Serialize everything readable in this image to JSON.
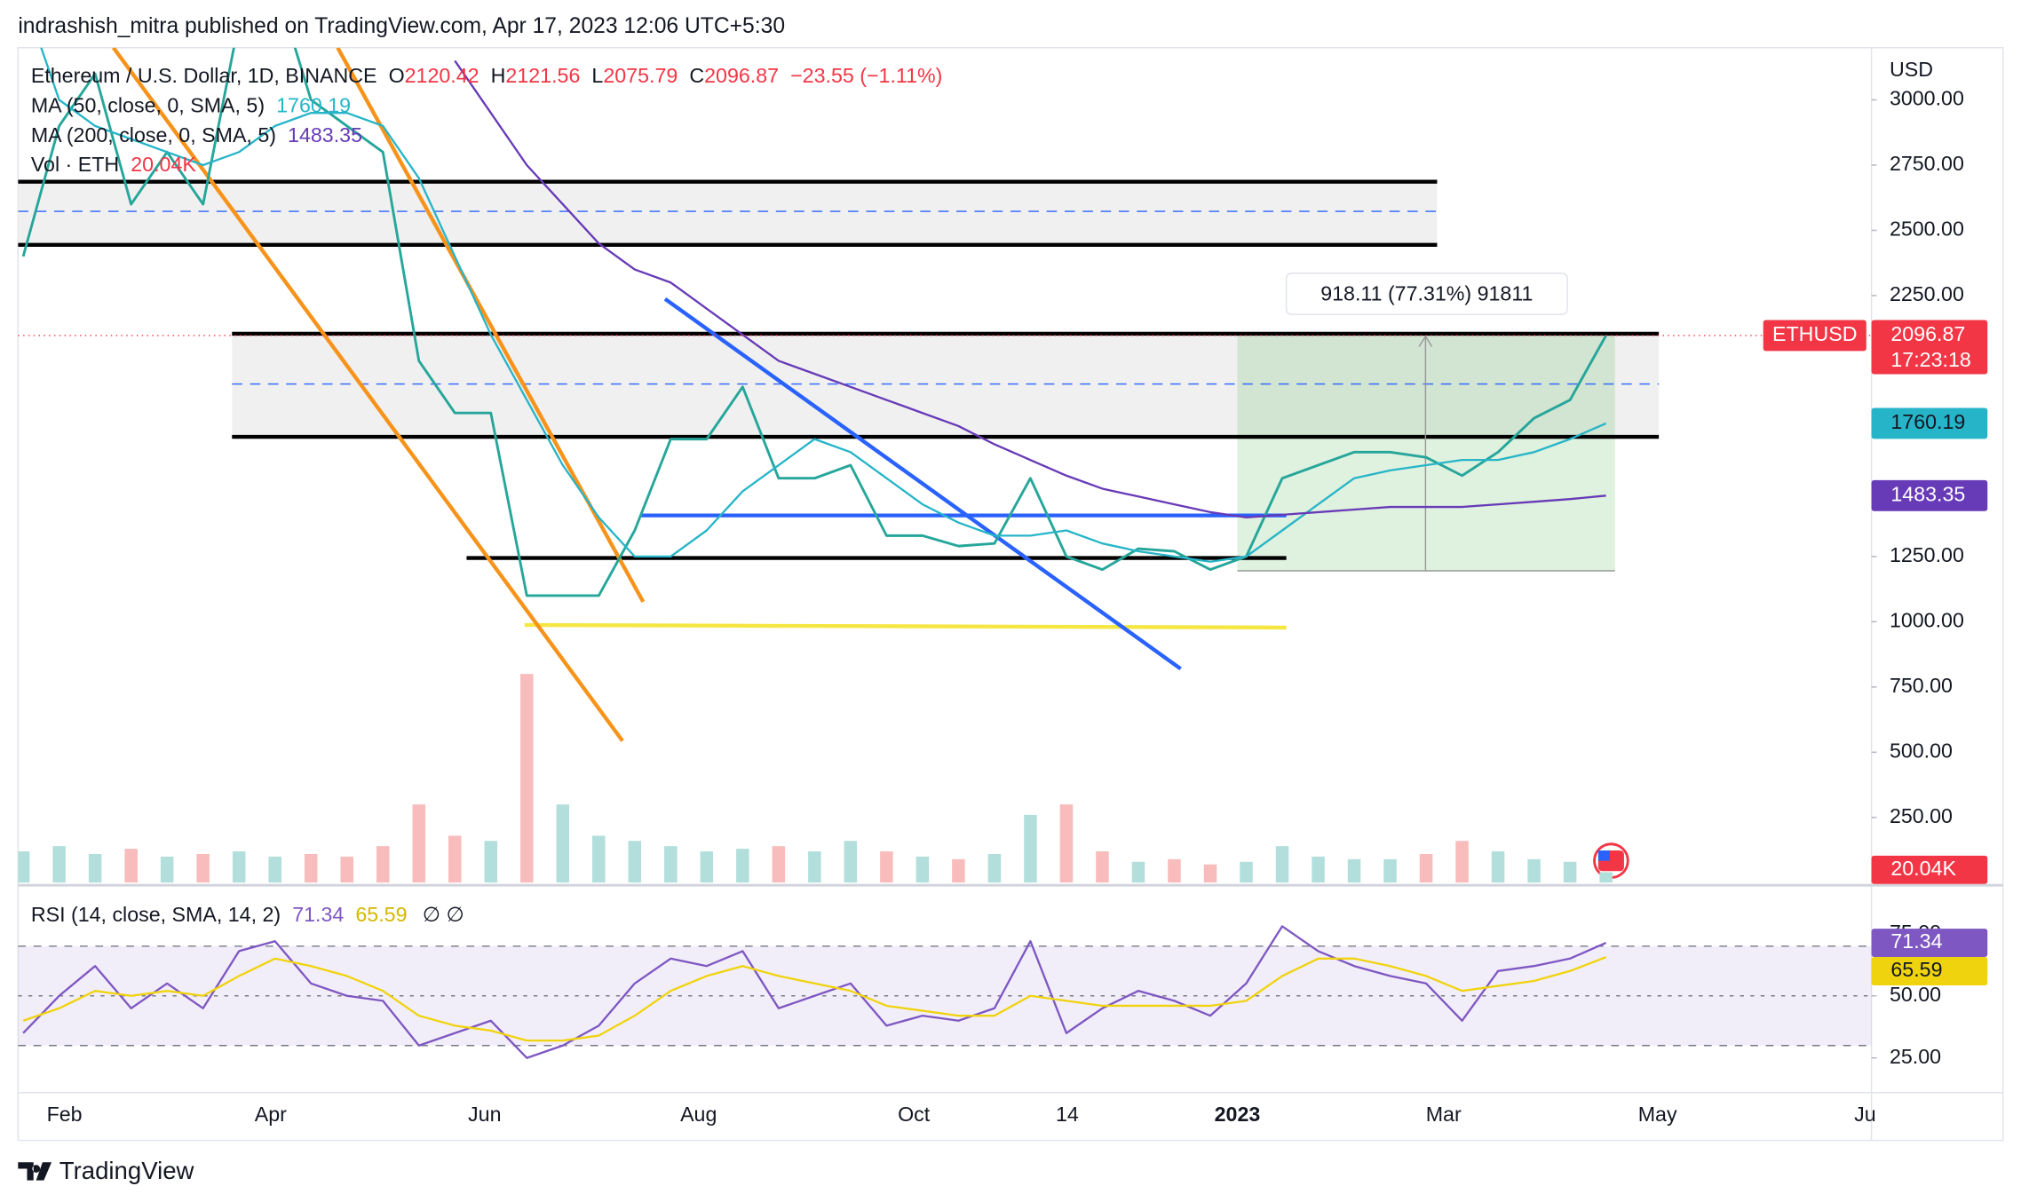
{
  "header": {
    "text": "indrashish_mitra published on TradingView.com, Apr 17, 2023 12:06 UTC+5:30"
  },
  "footer": {
    "brand": "TradingView"
  },
  "chart_data": [
    {
      "type": "line",
      "ohlc": [
        {
          "label": "O",
          "value": 2120.42
        },
        {
          "label": "H",
          "value": 2121.56
        },
        {
          "label": "L",
          "value": 2075.79
        },
        {
          "label": "C",
          "value": 2096.87
        }
      ],
      "change": "−23.55 (−1.11%)",
      "axis_label": "USD",
      "symbol": "ETHUSD",
      "countdown": "17:23:18",
      "measurement": "918.11 (77.31%) 91811",
      "ylim": [
        0,
        3200
      ],
      "yticks": [
        {
          "value": 250,
          "label": "250.00"
        },
        {
          "value": 500,
          "label": "500.00"
        },
        {
          "value": 750,
          "label": "750.00"
        },
        {
          "value": 1000,
          "label": "1000.00"
        },
        {
          "value": 1250,
          "label": "1250.00"
        },
        {
          "value": 2250,
          "label": "2250.00"
        },
        {
          "value": 2500,
          "label": "2500.00"
        },
        {
          "value": 2750,
          "label": "2750.00"
        },
        {
          "value": 3000,
          "label": "3000.00"
        }
      ],
      "y2lim": [
        0,
        1600000
      ],
      "series": [
        {
          "name": "Ethereum / U.S. Dollar, 1D, BINANCE",
          "color": "#26a69a",
          "values": [
            2400,
            2900,
            3100,
            2600,
            2800,
            2600,
            3300,
            3450,
            3000,
            2900,
            2800,
            2000,
            1800,
            1800,
            1100,
            1100,
            1100,
            1350,
            1700,
            1700,
            1900,
            1550,
            1550,
            1600,
            1330,
            1330,
            1290,
            1300,
            1550,
            1250,
            1200,
            1280,
            1270,
            1200,
            1250,
            1550,
            1600,
            1650,
            1650,
            1630,
            1560,
            1650,
            1780,
            1850,
            2096.87
          ]
        },
        {
          "name": "MA (50, close, 0, SMA, 5)",
          "color": "#26b5c8",
          "values": [
            3400,
            3000,
            2900,
            2850,
            2800,
            2750,
            2800,
            2900,
            2950,
            2950,
            2900,
            2700,
            2400,
            2100,
            1850,
            1600,
            1400,
            1250,
            1250,
            1350,
            1500,
            1600,
            1700,
            1650,
            1550,
            1450,
            1380,
            1330,
            1330,
            1350,
            1300,
            1270,
            1250,
            1230,
            1250,
            1350,
            1450,
            1550,
            1580,
            1600,
            1620,
            1620,
            1650,
            1700,
            1760.19
          ]
        },
        {
          "name": "MA (200, close, 0, SMA, 5)",
          "color": "#673ab7",
          "values": [
            null,
            null,
            null,
            null,
            null,
            null,
            null,
            null,
            null,
            null,
            null,
            null,
            3150,
            2950,
            2750,
            2600,
            2450,
            2350,
            2300,
            2200,
            2100,
            2000,
            1950,
            1900,
            1850,
            1800,
            1750,
            1680,
            1620,
            1560,
            1510,
            1480,
            1450,
            1420,
            1400,
            1410,
            1420,
            1430,
            1440,
            1440,
            1440,
            1450,
            1460,
            1470,
            1483.35
          ]
        },
        {
          "name": "Vol · ETH",
          "axis": "y2",
          "up_color": "#b2dfdb",
          "down_color": "#f8bcbc",
          "label_color": "#f23645",
          "values": [
            60000,
            70000,
            55000,
            65000,
            50000,
            55000,
            60000,
            50000,
            55000,
            50000,
            70000,
            150000,
            90000,
            80000,
            400000,
            150000,
            90000,
            80000,
            70000,
            60000,
            65000,
            70000,
            60000,
            80000,
            60000,
            50000,
            45000,
            55000,
            130000,
            150000,
            60000,
            40000,
            45000,
            35000,
            40000,
            70000,
            50000,
            45000,
            45000,
            55000,
            80000,
            60000,
            45000,
            40000,
            20040
          ],
          "value_labels": [
            null,
            null,
            null,
            null,
            null,
            null,
            null,
            null,
            null,
            null,
            null,
            null,
            null,
            null,
            null,
            null,
            null,
            null,
            null,
            null,
            null,
            null,
            null,
            null,
            null,
            null,
            null,
            null,
            null,
            null,
            null,
            null,
            null,
            null,
            null,
            null,
            null,
            null,
            null,
            null,
            null,
            null,
            null,
            null,
            "20.04K"
          ]
        }
      ]
    },
    {
      "type": "line",
      "ylim": [
        11,
        94
      ],
      "yticks": [
        {
          "value": 25,
          "label": "25.00"
        },
        {
          "value": 50,
          "label": "50.00"
        },
        {
          "value": 75,
          "label": "75.00"
        }
      ],
      "levels": [
        30,
        50,
        70
      ],
      "markers": "∅ ∅",
      "xtick_labels": [
        "Feb",
        "Apr",
        "Jun",
        "Aug",
        "Oct",
        "14",
        "2023",
        "Mar",
        "May",
        "Ju"
      ],
      "series": [
        {
          "name": "RSI (14, close, SMA, 14, 2)",
          "color": "#7e57c2",
          "values": [
            35,
            50,
            62,
            45,
            55,
            45,
            68,
            72,
            55,
            50,
            48,
            30,
            35,
            40,
            25,
            30,
            38,
            55,
            65,
            62,
            68,
            45,
            50,
            55,
            38,
            42,
            40,
            45,
            72,
            35,
            45,
            52,
            48,
            42,
            55,
            78,
            68,
            62,
            58,
            55,
            40,
            60,
            62,
            65,
            71.34
          ]
        },
        {
          "color": "#f0d30f",
          "values": [
            40,
            45,
            52,
            50,
            52,
            50,
            58,
            65,
            62,
            58,
            52,
            42,
            38,
            36,
            32,
            32,
            34,
            42,
            52,
            58,
            62,
            58,
            55,
            52,
            46,
            44,
            42,
            42,
            50,
            48,
            46,
            46,
            46,
            46,
            48,
            58,
            65,
            65,
            62,
            58,
            52,
            54,
            56,
            60,
            65.59
          ]
        }
      ]
    }
  ]
}
